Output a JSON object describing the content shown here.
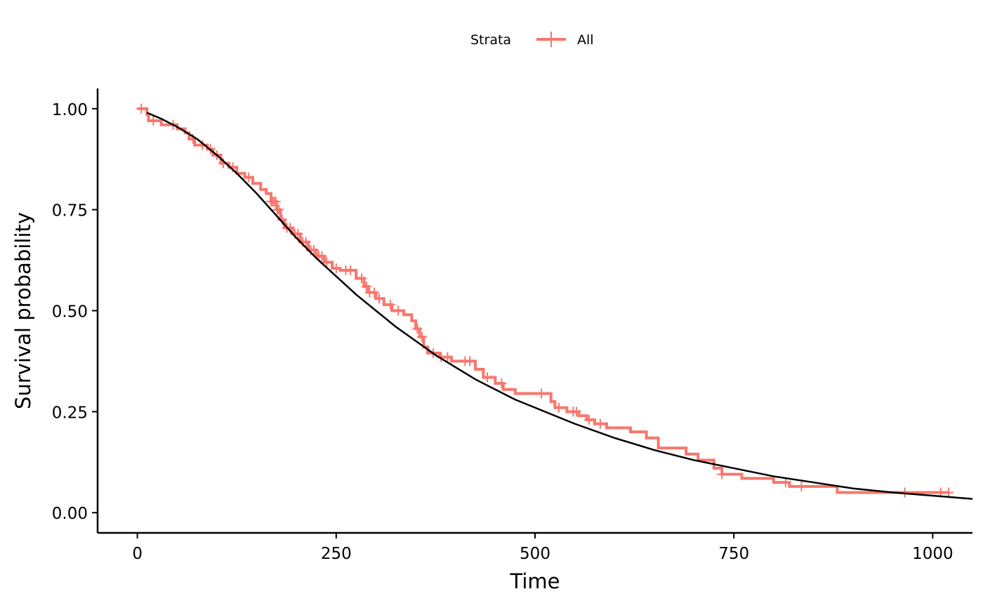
{
  "chart_data": {
    "type": "line",
    "title": "",
    "xlabel": "Time",
    "ylabel": "Survival probability",
    "xlim": [
      -50,
      1050
    ],
    "ylim": [
      -0.05,
      1.05
    ],
    "x_ticks": [
      0,
      250,
      500,
      750,
      1000
    ],
    "x_tick_labels": [
      "0",
      "250",
      "500",
      "750",
      "1000"
    ],
    "y_ticks": [
      0,
      0.25,
      0.5,
      0.75,
      1.0
    ],
    "y_tick_labels": [
      "0.00",
      "0.25",
      "0.50",
      "0.75",
      "1.00"
    ],
    "grid": false,
    "legend": {
      "title": "Strata",
      "position": "top",
      "entries": [
        "All"
      ]
    },
    "series": [
      {
        "name": "All",
        "kind": "step",
        "color": "#F8766D",
        "points": [
          [
            0,
            1.0
          ],
          [
            10,
            1.0
          ],
          [
            12,
            0.985
          ],
          [
            14,
            0.97
          ],
          [
            30,
            0.96
          ],
          [
            50,
            0.95
          ],
          [
            60,
            0.94
          ],
          [
            65,
            0.925
          ],
          [
            72,
            0.91
          ],
          [
            88,
            0.9
          ],
          [
            95,
            0.885
          ],
          [
            105,
            0.865
          ],
          [
            115,
            0.855
          ],
          [
            125,
            0.84
          ],
          [
            135,
            0.83
          ],
          [
            145,
            0.815
          ],
          [
            155,
            0.8
          ],
          [
            162,
            0.79
          ],
          [
            168,
            0.77
          ],
          [
            175,
            0.75
          ],
          [
            180,
            0.725
          ],
          [
            185,
            0.705
          ],
          [
            195,
            0.69
          ],
          [
            205,
            0.67
          ],
          [
            215,
            0.65
          ],
          [
            225,
            0.635
          ],
          [
            235,
            0.62
          ],
          [
            245,
            0.605
          ],
          [
            255,
            0.6
          ],
          [
            275,
            0.58
          ],
          [
            285,
            0.56
          ],
          [
            290,
            0.545
          ],
          [
            300,
            0.53
          ],
          [
            310,
            0.515
          ],
          [
            320,
            0.5
          ],
          [
            335,
            0.49
          ],
          [
            345,
            0.475
          ],
          [
            350,
            0.455
          ],
          [
            355,
            0.435
          ],
          [
            360,
            0.41
          ],
          [
            365,
            0.395
          ],
          [
            380,
            0.385
          ],
          [
            395,
            0.375
          ],
          [
            425,
            0.355
          ],
          [
            435,
            0.335
          ],
          [
            450,
            0.32
          ],
          [
            460,
            0.305
          ],
          [
            475,
            0.295
          ],
          [
            520,
            0.275
          ],
          [
            525,
            0.26
          ],
          [
            540,
            0.25
          ],
          [
            555,
            0.24
          ],
          [
            565,
            0.23
          ],
          [
            575,
            0.22
          ],
          [
            590,
            0.21
          ],
          [
            620,
            0.2
          ],
          [
            640,
            0.185
          ],
          [
            655,
            0.16
          ],
          [
            690,
            0.145
          ],
          [
            705,
            0.13
          ],
          [
            725,
            0.11
          ],
          [
            735,
            0.095
          ],
          [
            760,
            0.085
          ],
          [
            800,
            0.075
          ],
          [
            820,
            0.065
          ],
          [
            880,
            0.05
          ],
          [
            1020,
            0.05
          ]
        ],
        "censor_times": [
          5,
          20,
          45,
          70,
          82,
          92,
          100,
          108,
          120,
          140,
          168,
          170,
          172,
          174,
          176,
          178,
          182,
          188,
          192,
          198,
          202,
          208,
          212,
          218,
          222,
          228,
          232,
          238,
          250,
          262,
          268,
          282,
          288,
          292,
          298,
          304,
          318,
          328,
          352,
          358,
          372,
          382,
          390,
          412,
          418,
          440,
          458,
          508,
          530,
          548,
          552,
          568,
          582,
          735,
          815,
          835,
          965,
          1010,
          1020
        ]
      },
      {
        "name": "",
        "kind": "curve",
        "color": "#000000",
        "points": [
          [
            12,
            0.99
          ],
          [
            30,
            0.975
          ],
          [
            50,
            0.955
          ],
          [
            75,
            0.925
          ],
          [
            100,
            0.885
          ],
          [
            125,
            0.84
          ],
          [
            150,
            0.79
          ],
          [
            175,
            0.735
          ],
          [
            200,
            0.68
          ],
          [
            225,
            0.63
          ],
          [
            250,
            0.585
          ],
          [
            275,
            0.54
          ],
          [
            300,
            0.5
          ],
          [
            325,
            0.46
          ],
          [
            350,
            0.425
          ],
          [
            375,
            0.39
          ],
          [
            400,
            0.36
          ],
          [
            425,
            0.33
          ],
          [
            450,
            0.305
          ],
          [
            475,
            0.28
          ],
          [
            500,
            0.26
          ],
          [
            550,
            0.22
          ],
          [
            600,
            0.185
          ],
          [
            650,
            0.155
          ],
          [
            700,
            0.13
          ],
          [
            750,
            0.11
          ],
          [
            800,
            0.09
          ],
          [
            850,
            0.075
          ],
          [
            900,
            0.06
          ],
          [
            950,
            0.05
          ],
          [
            1000,
            0.042
          ],
          [
            1050,
            0.034
          ]
        ]
      }
    ]
  }
}
